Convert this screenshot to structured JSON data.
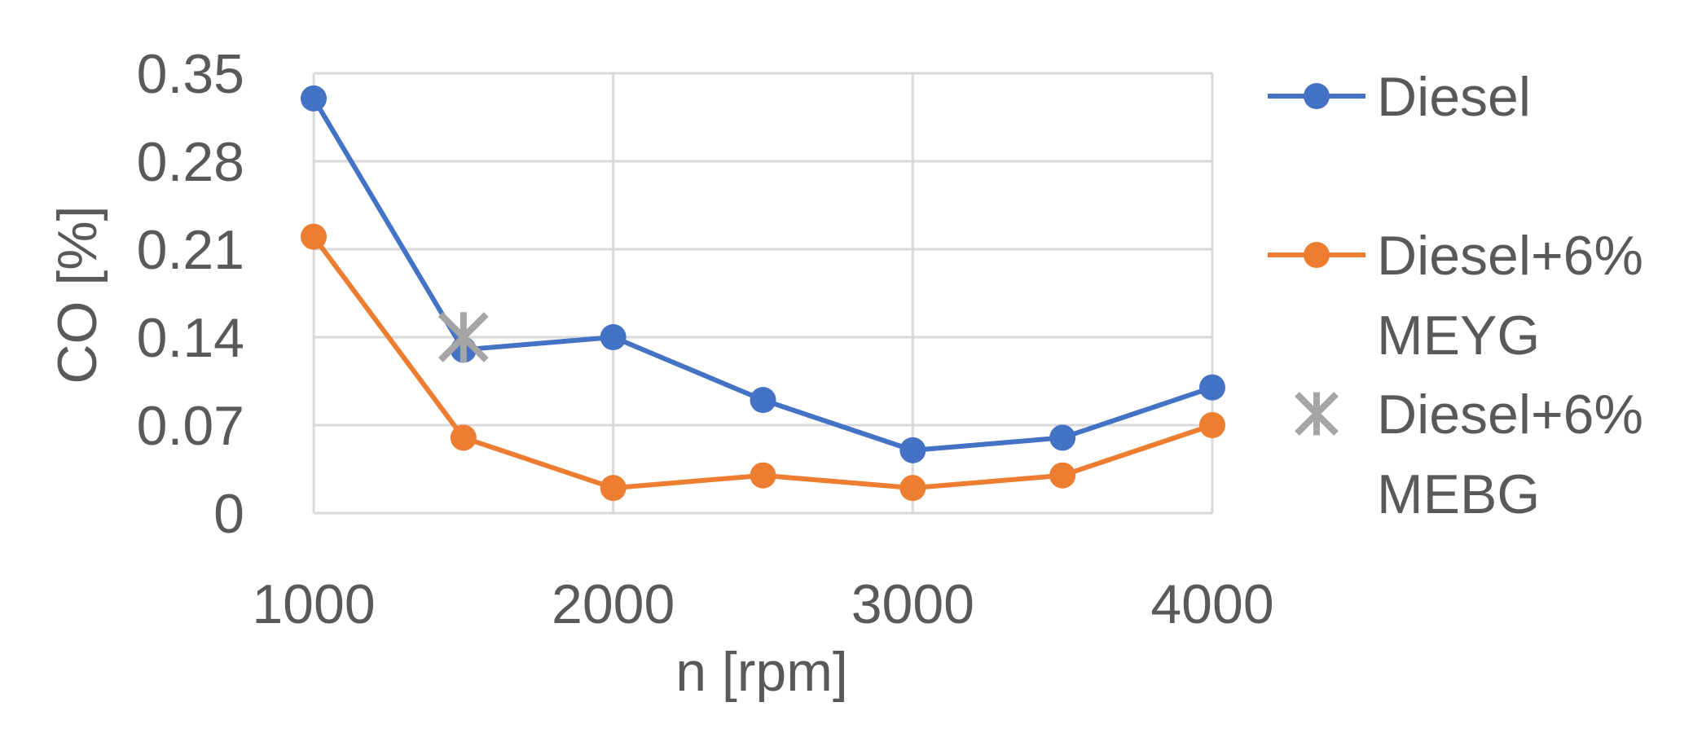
{
  "chart_data": {
    "type": "line",
    "xlabel": "n [rpm]",
    "ylabel": "CO [%]",
    "xlim": [
      1000,
      4000
    ],
    "ylim": [
      0,
      0.35
    ],
    "x_ticks": [
      1000,
      2000,
      3000,
      4000
    ],
    "x_tick_labels": [
      "1000",
      "2000",
      "3000",
      "4000"
    ],
    "y_ticks": [
      0,
      0.07,
      0.14,
      0.21,
      0.28,
      0.35
    ],
    "y_tick_labels": [
      "0",
      "0.07",
      "0.14",
      "0.21",
      "0.28",
      "0.35"
    ],
    "grid": true,
    "legend_position": "right",
    "series": [
      {
        "name": "Diesel",
        "color": "#4472C4",
        "marker": "circle",
        "x": [
          1000,
          1500,
          2000,
          2500,
          3000,
          3500,
          4000
        ],
        "y": [
          0.33,
          0.13,
          0.14,
          0.09,
          0.05,
          0.06,
          0.1
        ]
      },
      {
        "name": "Diesel+6% MEYG",
        "legend_lines": [
          "Diesel+6%",
          "MEYG"
        ],
        "color": "#ED7D31",
        "marker": "circle",
        "x": [
          1000,
          1500,
          2000,
          2500,
          3000,
          3500,
          4000
        ],
        "y": [
          0.22,
          0.06,
          0.02,
          0.03,
          0.02,
          0.03,
          0.07
        ]
      },
      {
        "name": "Diesel+6% MEBG",
        "legend_lines": [
          "Diesel+6%",
          "MEBG"
        ],
        "color": "#A5A5A5",
        "marker": "star",
        "x": [
          1500
        ],
        "y": [
          0.14
        ]
      }
    ]
  }
}
